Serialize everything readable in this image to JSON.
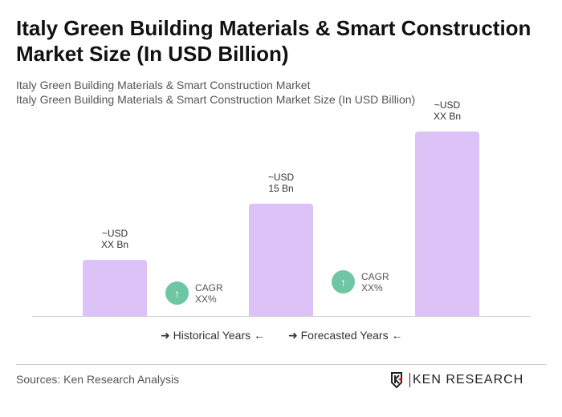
{
  "title": "Italy Green Building Materials & Smart Construction Market Size (In USD Billion)",
  "subtitle1": "Italy Green Building Materials & Smart Construction Market",
  "subtitle2": "Italy Green Building Materials & Smart Construction Market Size (In USD Billion)",
  "chart_data": {
    "type": "bar",
    "categories": [
      "",
      "",
      ""
    ],
    "values": [
      7.5,
      15,
      24.6
    ],
    "data_labels": [
      [
        "~USD",
        "XX Bn"
      ],
      [
        "~USD",
        "15 Bn"
      ],
      [
        "~USD",
        "XX Bn"
      ]
    ],
    "color": "#dcc2f6",
    "grid": false,
    "annotations": [
      {
        "label": "CAGR",
        "value": "XX%",
        "icon": "arrow-up-icon",
        "color": "#6fc6a4"
      },
      {
        "label": "CAGR",
        "value": "XX%",
        "icon": "arrow-up-icon",
        "color": "#6fc6a4"
      }
    ],
    "legend": [
      "Historical Years",
      "Forecasted Years"
    ]
  },
  "sources": "Sources: Ken Research Analysis",
  "logo": "KEN RESEARCH"
}
